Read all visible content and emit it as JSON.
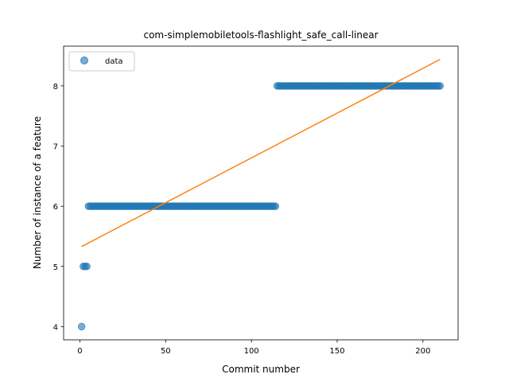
{
  "chart_data": {
    "type": "scatter",
    "title": "com-simplemobiletools-flashlight_safe_call-linear",
    "xlabel": "Commit number",
    "ylabel": "Number of instance of a feature",
    "xlim": [
      -9.5,
      220.5
    ],
    "ylim": [
      3.78,
      8.66
    ],
    "xticks": [
      0,
      50,
      100,
      150,
      200
    ],
    "yticks": [
      4,
      5,
      6,
      7,
      8
    ],
    "legend": {
      "entries": [
        "data"
      ],
      "position": "upper-left"
    },
    "series": [
      {
        "name": "data",
        "kind": "points",
        "color": "#1f77b4",
        "opacity": 0.6,
        "segments": [
          {
            "x_from": 1,
            "x_to": 1,
            "y": 4
          },
          {
            "x_from": 2,
            "x_to": 4,
            "y": 5
          },
          {
            "x_from": 5,
            "x_to": 114,
            "y": 6
          },
          {
            "x_from": 115,
            "x_to": 210,
            "y": 8
          }
        ]
      },
      {
        "name": "",
        "kind": "line",
        "color": "#ff7f0e",
        "x": [
          1,
          210
        ],
        "y": [
          5.33,
          8.44
        ]
      }
    ]
  }
}
